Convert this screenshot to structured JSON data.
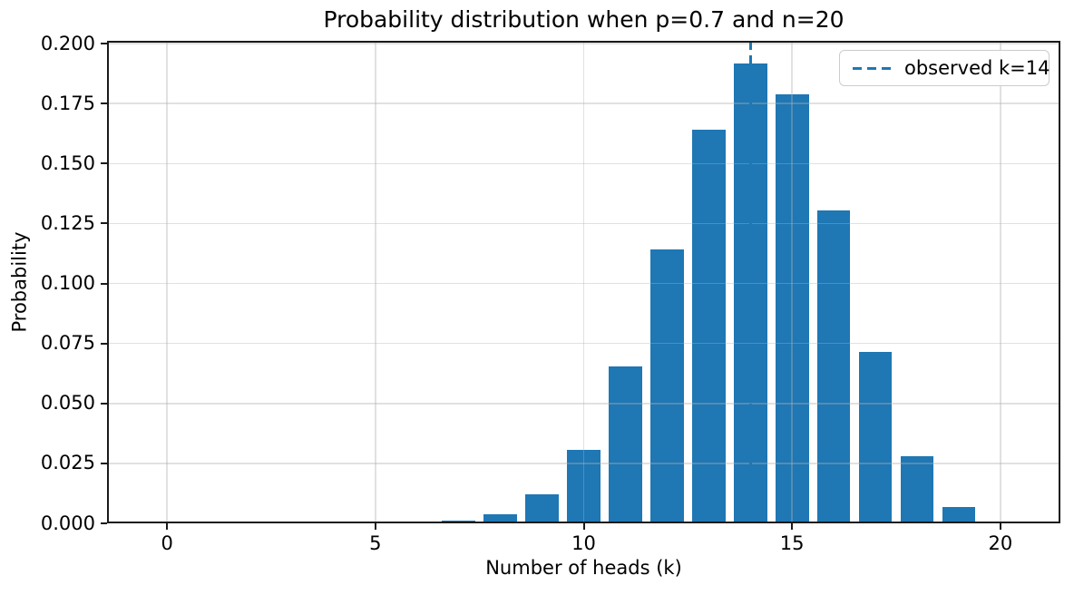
{
  "chart_data": {
    "type": "bar",
    "title": "Probability distribution when p=0.7 and n=20",
    "xlabel": "Number of heads (k)",
    "ylabel": "Probability",
    "categories": [
      0,
      1,
      2,
      3,
      4,
      5,
      6,
      7,
      8,
      9,
      10,
      11,
      12,
      13,
      14,
      15,
      16,
      17,
      18,
      19,
      20
    ],
    "values": [
      3.49e-11,
      1.63e-09,
      3.61e-08,
      5.05e-07,
      5.01e-06,
      3.74e-05,
      0.000218,
      0.001018,
      0.003859,
      0.012007,
      0.030817,
      0.06537,
      0.114397,
      0.164262,
      0.191639,
      0.178863,
      0.130421,
      0.071604,
      0.027846,
      0.006839,
      0.000798
    ],
    "bar_color": "#1f77b4",
    "bar_width": 0.8,
    "xlim": [
      -1.44,
      21.44
    ],
    "ylim": [
      0,
      0.2012
    ],
    "xticks": {
      "values": [
        0,
        5,
        10,
        15,
        20
      ],
      "labels": [
        "0",
        "5",
        "10",
        "15",
        "20"
      ]
    },
    "yticks": {
      "values": [
        0.0,
        0.025,
        0.05,
        0.075,
        0.1,
        0.125,
        0.15,
        0.175,
        0.2
      ],
      "labels": [
        "0.000",
        "0.025",
        "0.050",
        "0.075",
        "0.100",
        "0.125",
        "0.150",
        "0.175",
        "0.200"
      ]
    },
    "grid": true,
    "legend": {
      "label": "observed k=14",
      "position": "upper right",
      "line_style": "dashed",
      "line_color": "#1f77b4"
    },
    "annotation_line": {
      "x": 14,
      "style": "dashed",
      "color": "#1f77b4"
    }
  },
  "colors": {
    "background": "#ffffff",
    "bar": "#1f77b4",
    "grid": "rgba(176,176,176,0.38)",
    "spine": "#1a1a1a",
    "legend_border": "#cccccc",
    "text": "#000000"
  }
}
